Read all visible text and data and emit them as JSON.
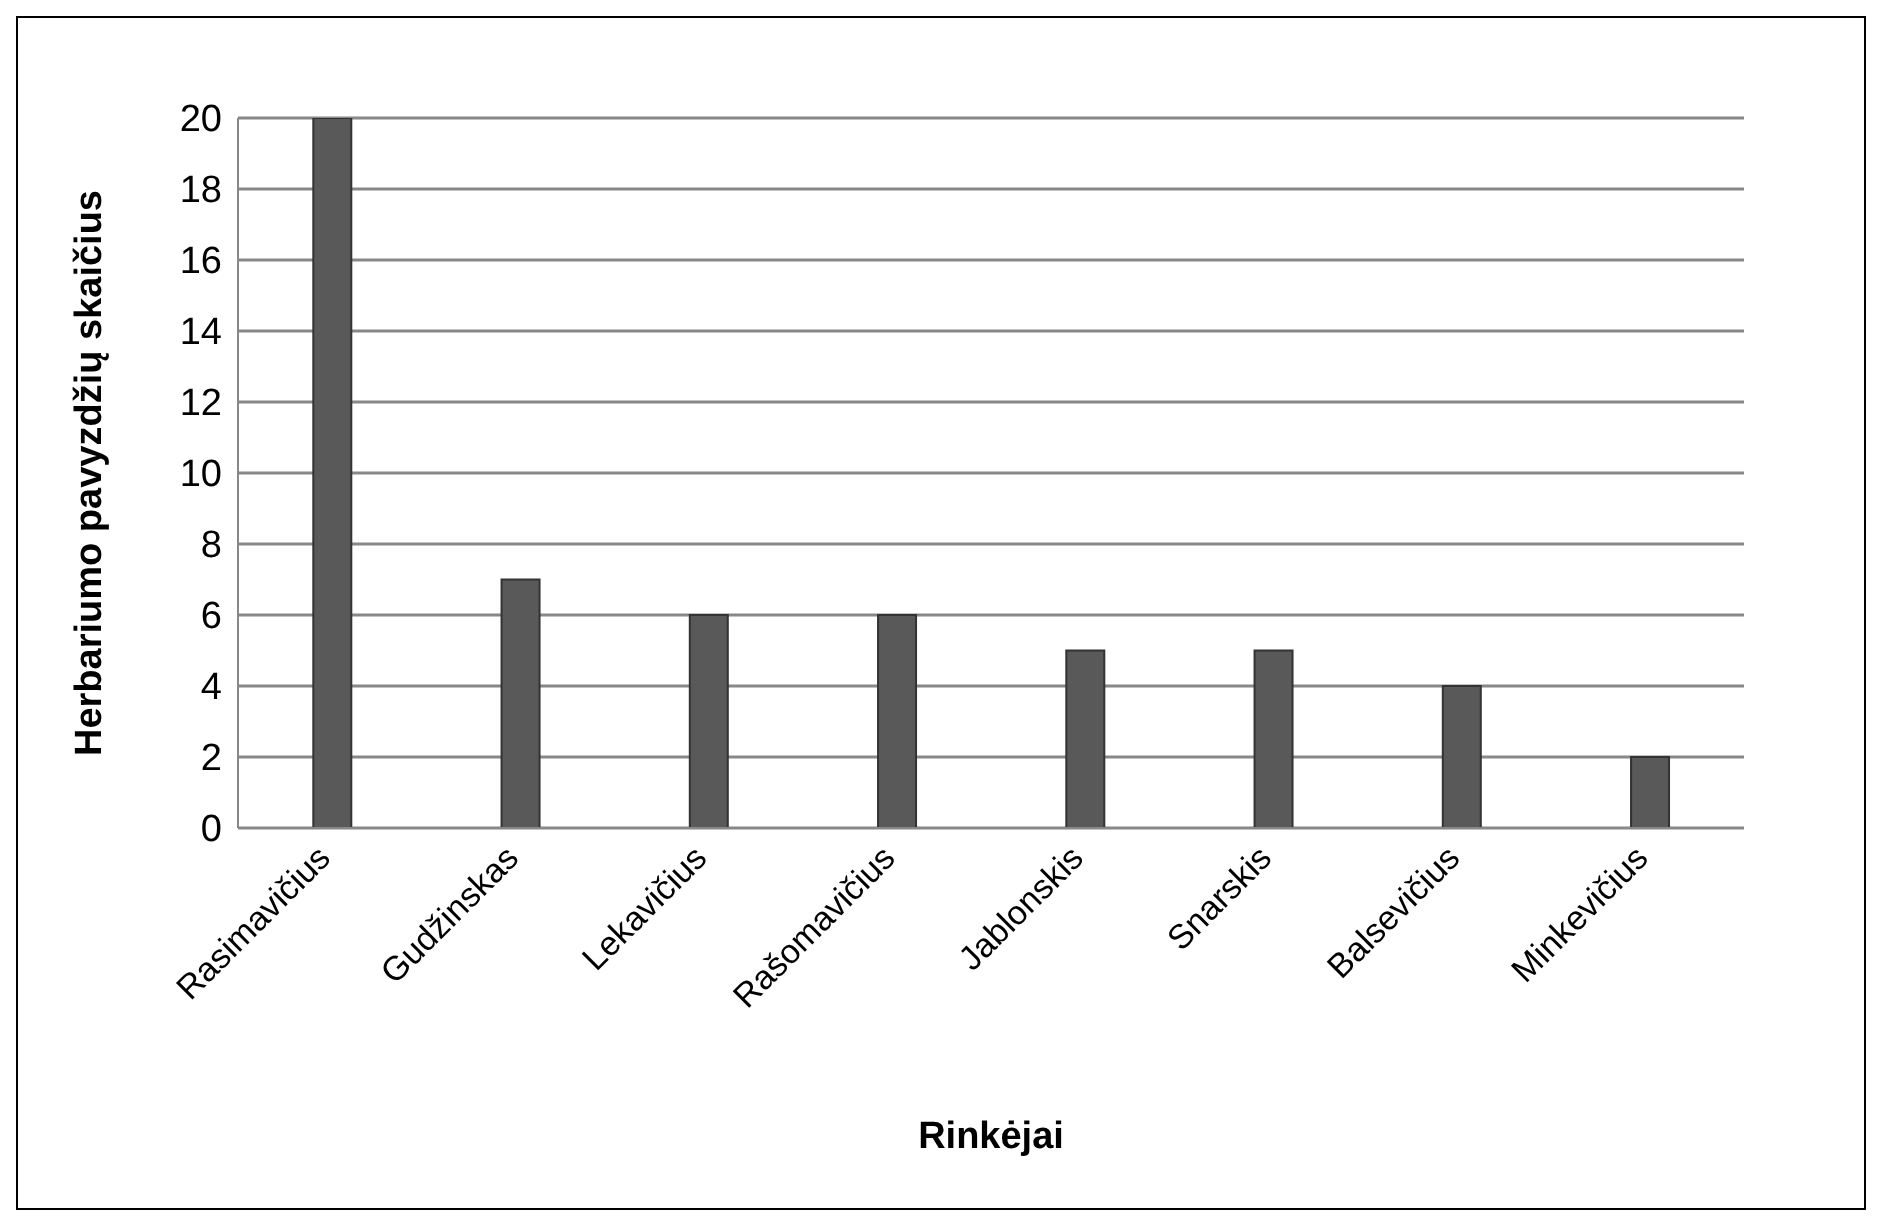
{
  "chart_data": {
    "type": "bar",
    "xlabel": "Rinkėjai",
    "ylabel": "Herbariumo pavyzdžių skaičius",
    "categories": [
      "Rasimavičius",
      "Gudžinskas",
      "Lekavičius",
      "Rašomavičius",
      "Jablonskis",
      "Snarskis",
      "Balsevičius",
      "Minkevičius"
    ],
    "values": [
      20,
      7,
      6,
      6,
      5,
      5,
      4,
      2
    ],
    "color": "#595959",
    "ylim": [
      0,
      20
    ],
    "yticks": [
      0,
      2,
      4,
      6,
      8,
      10,
      12,
      14,
      16,
      18,
      20
    ],
    "grid": "y",
    "legend": false
  }
}
